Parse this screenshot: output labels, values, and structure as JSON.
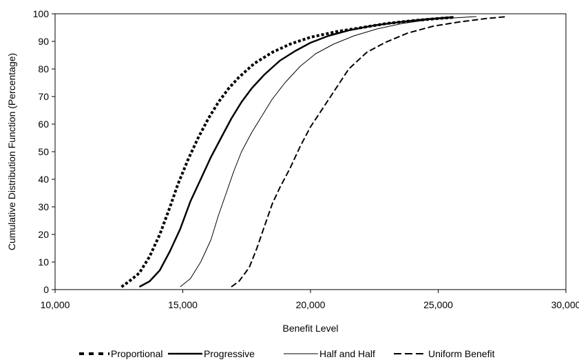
{
  "chart_data": {
    "type": "line",
    "xlabel": "Benefit Level",
    "ylabel": "Cumulative Distribution Function (Percentage)",
    "xlim": [
      10000,
      30000
    ],
    "ylim": [
      0,
      100
    ],
    "x_ticks": [
      10000,
      15000,
      20000,
      25000,
      30000
    ],
    "x_tick_labels": [
      "10,000",
      "15,000",
      "20,000",
      "25,000",
      "30,000"
    ],
    "y_ticks": [
      0,
      10,
      20,
      30,
      40,
      50,
      60,
      70,
      80,
      90,
      100
    ],
    "y_tick_labels": [
      "0",
      "10",
      "20",
      "30",
      "40",
      "50",
      "60",
      "70",
      "80",
      "90",
      "100"
    ],
    "grid": false,
    "legend_position": "bottom",
    "series": [
      {
        "name": "Proportional",
        "style": "dotted",
        "color": "#000000",
        "points": [
          [
            12600,
            1
          ],
          [
            12900,
            3
          ],
          [
            13300,
            6
          ],
          [
            13700,
            12
          ],
          [
            14100,
            20
          ],
          [
            14500,
            30
          ],
          [
            14800,
            38
          ],
          [
            15200,
            47
          ],
          [
            15600,
            55
          ],
          [
            16000,
            62
          ],
          [
            16400,
            68
          ],
          [
            16800,
            73
          ],
          [
            17200,
            77
          ],
          [
            17800,
            82
          ],
          [
            18500,
            86
          ],
          [
            19200,
            89
          ],
          [
            20000,
            91.5
          ],
          [
            21000,
            93.5
          ],
          [
            22000,
            95
          ],
          [
            23000,
            96.5
          ],
          [
            24000,
            97.5
          ],
          [
            25000,
            98.3
          ],
          [
            25600,
            98.7
          ]
        ]
      },
      {
        "name": "Progressive",
        "style": "thick",
        "color": "#000000",
        "points": [
          [
            13300,
            1
          ],
          [
            13700,
            3
          ],
          [
            14100,
            7
          ],
          [
            14500,
            14
          ],
          [
            14900,
            22
          ],
          [
            15300,
            32
          ],
          [
            15700,
            40
          ],
          [
            16100,
            48
          ],
          [
            16500,
            55
          ],
          [
            16900,
            62
          ],
          [
            17300,
            68
          ],
          [
            17700,
            73
          ],
          [
            18200,
            78
          ],
          [
            18800,
            83
          ],
          [
            19400,
            86.5
          ],
          [
            20000,
            89.5
          ],
          [
            20700,
            92
          ],
          [
            21500,
            94
          ],
          [
            22500,
            95.8
          ],
          [
            23500,
            97
          ],
          [
            24500,
            98
          ],
          [
            25600,
            98.8
          ]
        ]
      },
      {
        "name": "Half and Half",
        "style": "thin",
        "color": "#000000",
        "points": [
          [
            14900,
            1
          ],
          [
            15300,
            4
          ],
          [
            15700,
            10
          ],
          [
            16100,
            18
          ],
          [
            16400,
            27
          ],
          [
            16700,
            35
          ],
          [
            17000,
            43
          ],
          [
            17300,
            50
          ],
          [
            17700,
            57
          ],
          [
            18100,
            63
          ],
          [
            18500,
            69
          ],
          [
            19000,
            75
          ],
          [
            19600,
            81
          ],
          [
            20200,
            85.5
          ],
          [
            20900,
            89
          ],
          [
            21700,
            92
          ],
          [
            22600,
            94.5
          ],
          [
            23600,
            96.5
          ],
          [
            24600,
            97.8
          ],
          [
            25600,
            98.5
          ],
          [
            26500,
            99
          ]
        ]
      },
      {
        "name": "Uniform Benefit",
        "style": "dashed",
        "color": "#000000",
        "points": [
          [
            16900,
            1
          ],
          [
            17200,
            3
          ],
          [
            17600,
            8
          ],
          [
            17900,
            15
          ],
          [
            18200,
            23
          ],
          [
            18500,
            31
          ],
          [
            18800,
            37
          ],
          [
            19200,
            44
          ],
          [
            19600,
            52
          ],
          [
            20000,
            59
          ],
          [
            20500,
            66
          ],
          [
            21000,
            73
          ],
          [
            21500,
            80
          ],
          [
            22200,
            86
          ],
          [
            22900,
            89.5
          ],
          [
            23800,
            93
          ],
          [
            24800,
            95.5
          ],
          [
            25800,
            97
          ],
          [
            26800,
            98.2
          ],
          [
            27700,
            99
          ]
        ]
      }
    ]
  }
}
